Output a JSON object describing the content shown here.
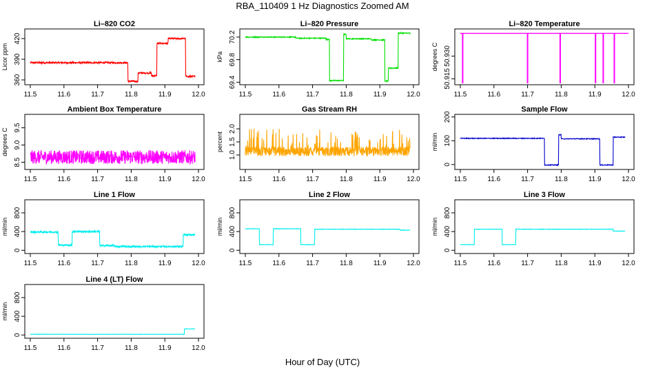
{
  "title": "RBA_110409  1 Hz Diagnostics Zoomed AM",
  "xlabel": "Hour of Day (UTC)",
  "colors": {
    "axis": "#000000",
    "red": "#ff0000",
    "green": "#00e000",
    "magenta": "#ff00ff",
    "orange": "#ffa500",
    "blue": "#0000cc",
    "cyan": "#00eeee"
  },
  "chart_data": [
    {
      "type": "line",
      "title": "Li–820 CO2",
      "ylabel": "Licor ppm",
      "color": "red",
      "xlim": [
        11.5,
        12.0
      ],
      "ylim": [
        355,
        432
      ],
      "xticks": [
        11.5,
        11.6,
        11.7,
        11.8,
        11.9,
        12.0
      ],
      "yticks": [
        360,
        390,
        420
      ],
      "ytick_labels": [
        "360",
        "390",
        "420"
      ],
      "noise": 1.2,
      "spikes": [],
      "steps": [
        [
          11.5,
          385
        ],
        [
          11.79,
          358
        ],
        [
          11.82,
          370
        ],
        [
          11.86,
          366
        ],
        [
          11.876,
          413
        ],
        [
          11.91,
          420
        ],
        [
          11.953,
          420
        ],
        [
          11.962,
          365
        ],
        [
          11.99,
          367
        ]
      ]
    },
    {
      "type": "line",
      "title": "Li–820 Pressure",
      "ylabel": "kPa",
      "color": "green",
      "xlim": [
        11.5,
        12.0
      ],
      "ylim": [
        69.38,
        70.32
      ],
      "xticks": [
        11.5,
        11.6,
        11.7,
        11.8,
        11.9,
        12.0
      ],
      "yticks": [
        69.4,
        69.8,
        70.2
      ],
      "ytick_labels": [
        "69.4",
        "69.8",
        "70.2"
      ],
      "noise": 0.008,
      "spikes": [],
      "steps": [
        [
          11.5,
          70.2
        ],
        [
          11.65,
          70.18
        ],
        [
          11.74,
          70.16
        ],
        [
          11.75,
          69.43
        ],
        [
          11.792,
          70.25
        ],
        [
          11.8,
          70.17
        ],
        [
          11.875,
          70.15
        ],
        [
          11.915,
          69.42
        ],
        [
          11.925,
          69.65
        ],
        [
          11.955,
          70.27
        ],
        [
          11.99,
          70.25
        ]
      ]
    },
    {
      "type": "line",
      "title": "Li–820 Temperature",
      "ylabel": "degrees C",
      "color": "magenta",
      "xlim": [
        11.5,
        12.0
      ],
      "ylim": [
        50.912,
        50.947
      ],
      "xticks": [
        11.5,
        11.6,
        11.7,
        11.8,
        11.9,
        12.0
      ],
      "yticks": [
        50.915,
        50.93
      ],
      "ytick_labels": [
        "50.915",
        "50.930"
      ],
      "noise": 0,
      "spikes": [
        11.507,
        11.7,
        11.797,
        11.902,
        11.925,
        11.958
      ],
      "steps": [
        [
          11.5,
          50.945
        ]
      ]
    },
    {
      "type": "line",
      "title": "Ambient Box Temperature",
      "ylabel": "degrees C",
      "color": "magenta",
      "xlim": [
        11.5,
        12.0
      ],
      "ylim": [
        8.33,
        9.85
      ],
      "xticks": [
        11.5,
        11.6,
        11.7,
        11.8,
        11.9,
        12.0
      ],
      "yticks": [
        8.5,
        9.0,
        9.5
      ],
      "ytick_labels": [
        "8.5",
        "9.0",
        "9.5"
      ],
      "noise": 0.2,
      "spikes": [],
      "steps": [
        [
          11.5,
          8.65
        ]
      ]
    },
    {
      "type": "line",
      "title": "Gas Stream RH",
      "ylabel": "percent",
      "color": "orange",
      "xlim": [
        11.5,
        12.0
      ],
      "ylim": [
        0.5,
        2.5
      ],
      "xticks": [
        11.5,
        11.6,
        11.7,
        11.8,
        11.9,
        12.0
      ],
      "yticks": [
        1.0,
        1.5,
        2.0
      ],
      "ytick_labels": [
        "1.0",
        "1.5",
        "2.0"
      ],
      "noise": 0.35,
      "spikes": [],
      "steps": [
        [
          11.5,
          1.1
        ]
      ]
    },
    {
      "type": "line",
      "title": "Sample Flow",
      "ylabel": "ml/min",
      "color": "blue",
      "xlim": [
        11.5,
        12.0
      ],
      "ylim": [
        -15,
        205
      ],
      "xticks": [
        11.5,
        11.6,
        11.7,
        11.8,
        11.9,
        12.0
      ],
      "yticks": [
        0,
        100,
        200
      ],
      "ytick_labels": [
        "0",
        "100",
        "200"
      ],
      "noise": 1.5,
      "spikes": [],
      "steps": [
        [
          11.5,
          110
        ],
        [
          11.75,
          -2
        ],
        [
          11.792,
          125
        ],
        [
          11.8,
          108
        ],
        [
          11.915,
          -2
        ],
        [
          11.955,
          115
        ],
        [
          11.99,
          115
        ]
      ]
    },
    {
      "type": "line",
      "title": "Line 1 Flow",
      "ylabel": "ml/min",
      "color": "cyan",
      "xlim": [
        11.5,
        12.0
      ],
      "ylim": [
        -40,
        1050
      ],
      "xticks": [
        11.5,
        11.6,
        11.7,
        11.8,
        11.9,
        12.0
      ],
      "yticks": [
        0,
        400,
        800
      ],
      "ytick_labels": [
        "0",
        "400",
        "800"
      ],
      "noise": 18,
      "spikes": [],
      "steps": [
        [
          11.5,
          390
        ],
        [
          11.583,
          110
        ],
        [
          11.624,
          400
        ],
        [
          11.706,
          100
        ],
        [
          11.75,
          80
        ],
        [
          11.955,
          330
        ],
        [
          11.99,
          330
        ]
      ]
    },
    {
      "type": "line",
      "title": "Line 2 Flow",
      "ylabel": "ml/min",
      "color": "cyan",
      "xlim": [
        11.5,
        12.0
      ],
      "ylim": [
        -40,
        1050
      ],
      "xticks": [
        11.5,
        11.6,
        11.7,
        11.8,
        11.9,
        12.0
      ],
      "yticks": [
        0,
        400,
        800
      ],
      "ytick_labels": [
        "0",
        "400",
        "800"
      ],
      "noise": 4,
      "spikes": [],
      "steps": [
        [
          11.5,
          460
        ],
        [
          11.542,
          120
        ],
        [
          11.583,
          460
        ],
        [
          11.665,
          120
        ],
        [
          11.706,
          450
        ],
        [
          11.96,
          430
        ],
        [
          11.99,
          430
        ]
      ]
    },
    {
      "type": "line",
      "title": "Line 3 Flow",
      "ylabel": "ml/min",
      "color": "cyan",
      "xlim": [
        11.5,
        12.0
      ],
      "ylim": [
        -40,
        1050
      ],
      "xticks": [
        11.5,
        11.6,
        11.7,
        11.8,
        11.9,
        12.0
      ],
      "yticks": [
        0,
        400,
        800
      ],
      "ytick_labels": [
        "0",
        "400",
        "800"
      ],
      "noise": 4,
      "spikes": [],
      "steps": [
        [
          11.5,
          120
        ],
        [
          11.542,
          450
        ],
        [
          11.624,
          120
        ],
        [
          11.665,
          450
        ],
        [
          11.955,
          410
        ],
        [
          11.99,
          410
        ]
      ]
    },
    {
      "type": "line",
      "title": "Line 4 (LT) Flow",
      "ylabel": "ml/min",
      "color": "cyan",
      "xlim": [
        11.5,
        12.0
      ],
      "ylim": [
        -40,
        1050
      ],
      "xticks": [
        11.5,
        11.6,
        11.7,
        11.8,
        11.9,
        12.0
      ],
      "yticks": [
        0,
        400,
        800
      ],
      "ytick_labels": [
        "0",
        "400",
        "800"
      ],
      "noise": 3,
      "spikes": [],
      "steps": [
        [
          11.5,
          15
        ],
        [
          11.958,
          130
        ],
        [
          11.99,
          130
        ]
      ]
    }
  ]
}
